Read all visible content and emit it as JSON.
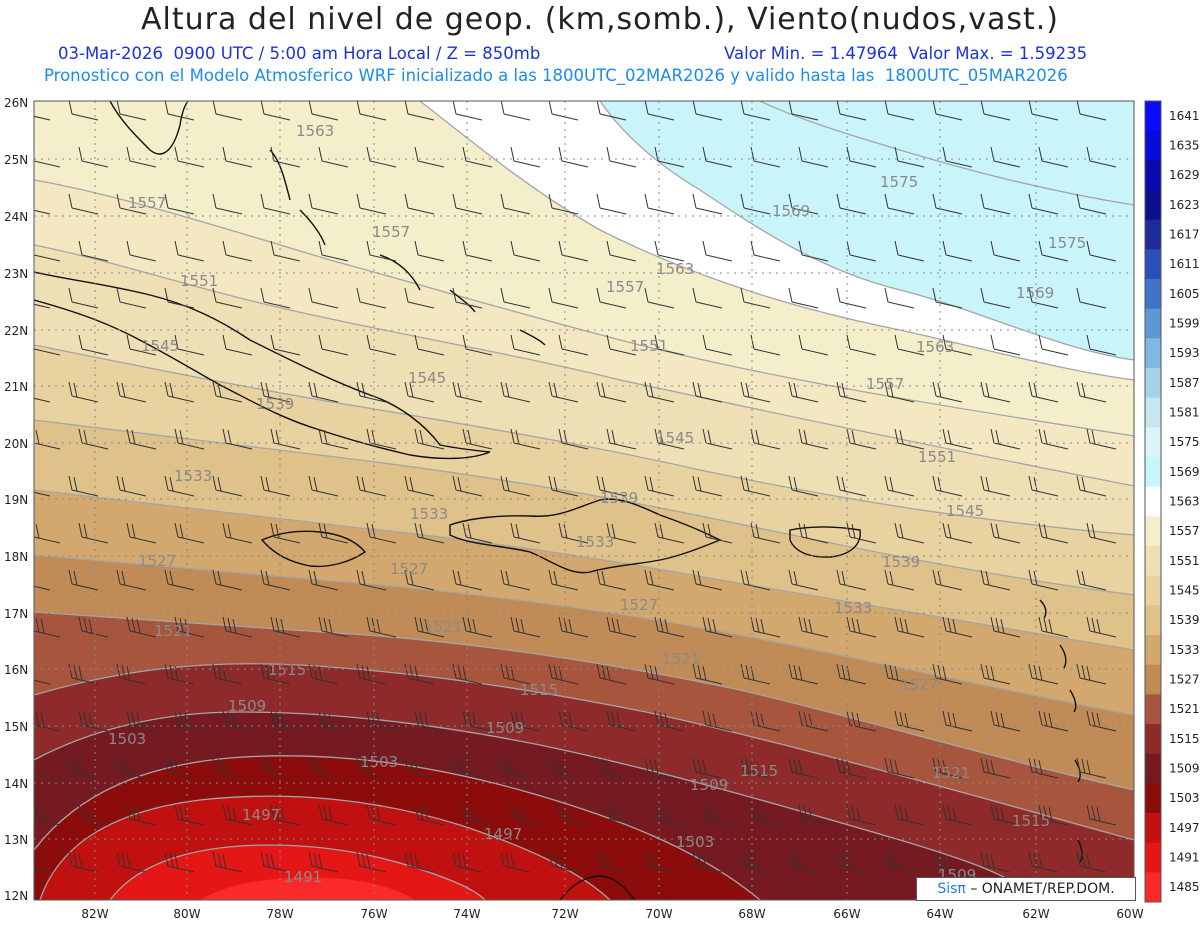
{
  "header": {
    "title": "Altura del nivel de geop. (km,somb.), Viento(nudos,vast.)",
    "line1": "03-Mar-2026  0900 UTC / 5:00 am Hora Local / Z = 850mb",
    "line1_right": "Valor Min. = 1.47964  Valor Max. = 1.59235",
    "line2": "Pronostico con el Modelo Atmosferico WRF inicializado a las 1800UTC_02MAR2026 y valido hasta las  1800UTC_05MAR2026"
  },
  "map": {
    "lat_labels": [
      "26N",
      "25N",
      "24N",
      "23N",
      "22N",
      "21N",
      "20N",
      "19N",
      "18N",
      "17N",
      "16N",
      "15N",
      "14N",
      "13N",
      "12N"
    ],
    "lon_labels": [
      "82W",
      "80W",
      "78W",
      "76W",
      "74W",
      "72W",
      "70W",
      "68W",
      "66W",
      "64W",
      "62W",
      "60W"
    ],
    "contour_labels": [
      "1563",
      "1557",
      "1557",
      "1551",
      "1545",
      "1545",
      "1539",
      "1533",
      "1533",
      "1527",
      "1527",
      "1521",
      "1521",
      "1515",
      "1515",
      "1509",
      "1509",
      "1503",
      "1503",
      "1497",
      "1497",
      "1491",
      "1563",
      "1557",
      "1551",
      "1545",
      "1539",
      "1533",
      "1527",
      "1521",
      "1515",
      "1509",
      "1503",
      "1575",
      "1569",
      "1575",
      "1569",
      "1563",
      "1557",
      "1551",
      "1545",
      "1539",
      "1533",
      "1527",
      "1521",
      "1515",
      "1509"
    ],
    "colors": {
      "white": "#ffffff",
      "light_cyan": "#c9f4fa",
      "band_1563": "#f5eecb",
      "band_1557": "#f4e8c2",
      "band_1551": "#efdfb4",
      "band_1545": "#e8d3a0",
      "band_1539": "#dfc18a",
      "band_1533": "#d2a86e",
      "band_1527": "#c18b58",
      "band_1521": "#a8553e",
      "band_1515": "#8e2a2a",
      "band_1509": "#741a20",
      "band_1503": "#8c0c0c",
      "band_1497": "#c01010",
      "band_1491": "#e41616",
      "band_1485": "#fa2a2a"
    }
  },
  "colorbar": {
    "labels": [
      "1641",
      "1635",
      "1629",
      "1623",
      "1617",
      "1611",
      "1605",
      "1599",
      "1593",
      "1587",
      "1581",
      "1575",
      "1569",
      "1563",
      "1557",
      "1551",
      "1545",
      "1539",
      "1533",
      "1527",
      "1521",
      "1515",
      "1509",
      "1503",
      "1497",
      "1491",
      "1485"
    ],
    "colors": [
      "#0a0aff",
      "#0a0ad8",
      "#0a0ab0",
      "#0e0e90",
      "#1c2a9a",
      "#2a4fb8",
      "#3f74c8",
      "#5d97d4",
      "#80b8e0",
      "#a6d3ea",
      "#c6e6f0",
      "#dcf4f8",
      "#c9f4fa",
      "#ffffff",
      "#f5eecb",
      "#efdfb4",
      "#e8d3a0",
      "#dfc18a",
      "#d2a86e",
      "#c18b58",
      "#a8553e",
      "#8e2a2a",
      "#741a20",
      "#8c0c0c",
      "#c01010",
      "#e41616",
      "#fa2a2a"
    ]
  },
  "credit": {
    "brand": "Sisπ",
    "text": "– ONAMET/REP.DOM."
  }
}
